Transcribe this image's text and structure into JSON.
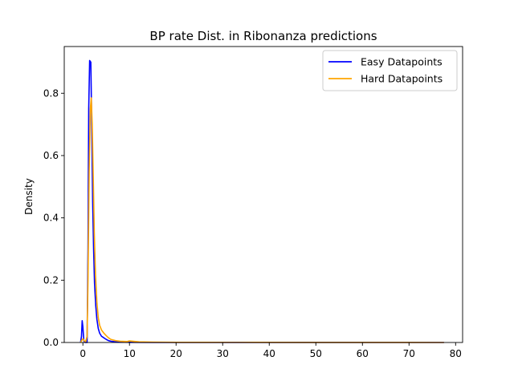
{
  "chart_data": {
    "type": "line",
    "title": "BP rate Dist. in Ribonanza predictions",
    "xlabel": "",
    "ylabel": "Density",
    "xlim": [
      -4.0,
      81.5
    ],
    "ylim": [
      0,
      0.95
    ],
    "xticks": [
      0,
      10,
      20,
      30,
      40,
      50,
      60,
      70,
      80
    ],
    "yticks": [
      0.0,
      0.2,
      0.4,
      0.6,
      0.8
    ],
    "grid": false,
    "legend_position": "top-right",
    "series": [
      {
        "name": "Easy Datapoints",
        "color": "#0000ff",
        "points": [
          [
            -0.5,
            0
          ],
          [
            -0.3,
            0.02
          ],
          [
            -0.15,
            0.07
          ],
          [
            0,
            0.05
          ],
          [
            0.2,
            0.005
          ],
          [
            0.5,
            0
          ],
          [
            0.9,
            0
          ],
          [
            1.1,
            0.3
          ],
          [
            1.25,
            0.75
          ],
          [
            1.45,
            0.905
          ],
          [
            1.7,
            0.9
          ],
          [
            1.9,
            0.7
          ],
          [
            2.1,
            0.45
          ],
          [
            2.3,
            0.3
          ],
          [
            2.5,
            0.19
          ],
          [
            2.75,
            0.12
          ],
          [
            3.0,
            0.075
          ],
          [
            3.3,
            0.045
          ],
          [
            3.6,
            0.03
          ],
          [
            4.0,
            0.02
          ],
          [
            4.5,
            0.015
          ],
          [
            5.0,
            0.01
          ],
          [
            5.5,
            0.006
          ],
          [
            6.0,
            0.004
          ],
          [
            7.0,
            0.002
          ],
          [
            8.0,
            0.001
          ],
          [
            10.0,
            0.0005
          ],
          [
            15.0,
            0.0002
          ],
          [
            77.5,
            0
          ]
        ]
      },
      {
        "name": "Hard Datapoints",
        "color": "#ffa500",
        "points": [
          [
            -0.5,
            0
          ],
          [
            -0.2,
            0.008
          ],
          [
            0,
            0.012
          ],
          [
            0.3,
            0.005
          ],
          [
            0.6,
            0.003
          ],
          [
            0.9,
            0.02
          ],
          [
            1.1,
            0.2
          ],
          [
            1.35,
            0.55
          ],
          [
            1.6,
            0.75
          ],
          [
            1.8,
            0.785
          ],
          [
            2.0,
            0.7
          ],
          [
            2.2,
            0.55
          ],
          [
            2.45,
            0.35
          ],
          [
            2.7,
            0.22
          ],
          [
            3.0,
            0.13
          ],
          [
            3.3,
            0.08
          ],
          [
            3.6,
            0.055
          ],
          [
            4.0,
            0.04
          ],
          [
            4.5,
            0.03
          ],
          [
            5.0,
            0.022
          ],
          [
            5.5,
            0.015
          ],
          [
            6.0,
            0.01
          ],
          [
            7.0,
            0.006
          ],
          [
            8.0,
            0.004
          ],
          [
            9.5,
            0.003
          ],
          [
            10.0,
            0.005
          ],
          [
            12.0,
            0.002
          ],
          [
            15.0,
            0.001
          ],
          [
            20.0,
            0.0005
          ],
          [
            33.0,
            0.0003
          ],
          [
            37.0,
            0.0004
          ],
          [
            50.0,
            0.0002
          ],
          [
            77.5,
            0
          ]
        ]
      }
    ]
  }
}
